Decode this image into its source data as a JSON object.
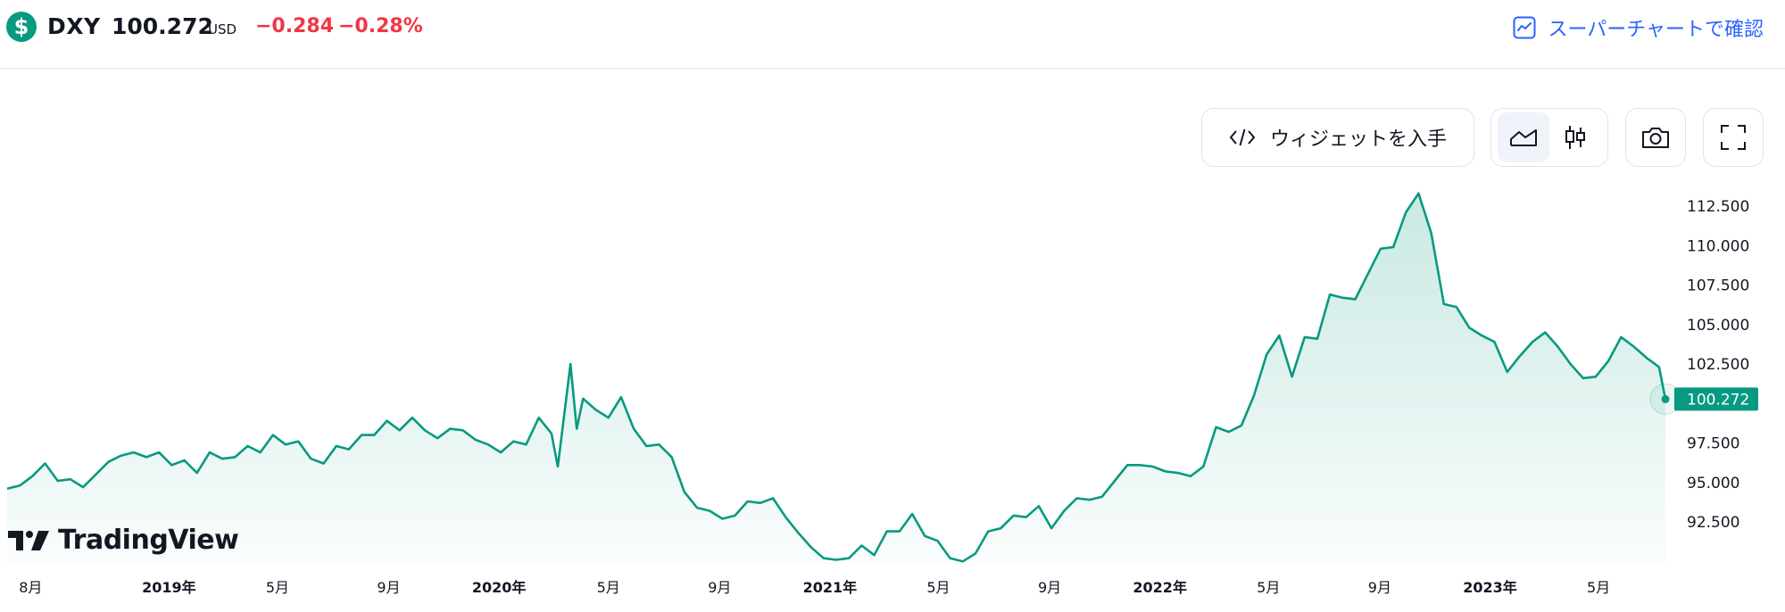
{
  "header": {
    "logo_glyph": "$",
    "symbol": "DXY",
    "price": "100.272",
    "currency": "USD",
    "change": "−0.284",
    "change_pct": "−0.28%",
    "supercharts_label": "スーパーチャートで確認"
  },
  "toolbar": {
    "widget_label": "ウィジェットを入手",
    "buttons": [
      "area-chart-icon",
      "candles-icon",
      "camera-icon",
      "fullscreen-icon"
    ],
    "active_chart_type": "area"
  },
  "brand": {
    "name": "TradingView"
  },
  "colors": {
    "line": "#089981",
    "negative": "#f23645",
    "accent": "#2962ff"
  },
  "chart_data": {
    "type": "area",
    "y_axis": {
      "ticks": [
        "112.500",
        "110.000",
        "107.500",
        "105.000",
        "102.500",
        "100.000",
        "97.500",
        "95.000",
        "92.500"
      ],
      "ylim": [
        90.0,
        115.0
      ]
    },
    "last_value_label": "100.272",
    "x_ticks": [
      {
        "label": "8月",
        "bold": false,
        "x": "2018-08-01"
      },
      {
        "label": "2019年",
        "bold": true,
        "x": "2019-01-01"
      },
      {
        "label": "5月",
        "bold": false,
        "x": "2019-05-01"
      },
      {
        "label": "9月",
        "bold": false,
        "x": "2019-09-01"
      },
      {
        "label": "2020年",
        "bold": true,
        "x": "2020-01-01"
      },
      {
        "label": "5月",
        "bold": false,
        "x": "2020-05-01"
      },
      {
        "label": "9月",
        "bold": false,
        "x": "2020-09-01"
      },
      {
        "label": "2021年",
        "bold": true,
        "x": "2021-01-01"
      },
      {
        "label": "5月",
        "bold": false,
        "x": "2021-05-01"
      },
      {
        "label": "9月",
        "bold": false,
        "x": "2021-09-01"
      },
      {
        "label": "2022年",
        "bold": true,
        "x": "2022-01-01"
      },
      {
        "label": "5月",
        "bold": false,
        "x": "2022-05-01"
      },
      {
        "label": "9月",
        "bold": false,
        "x": "2022-09-01"
      },
      {
        "label": "2023年",
        "bold": true,
        "x": "2023-01-01"
      },
      {
        "label": "5月",
        "bold": false,
        "x": "2023-05-01"
      }
    ],
    "series": [
      {
        "points": [
          [
            "2018-07-06",
            94.6
          ],
          [
            "2018-07-20",
            94.8
          ],
          [
            "2018-08-03",
            95.4
          ],
          [
            "2018-08-17",
            96.2
          ],
          [
            "2018-08-31",
            95.1
          ],
          [
            "2018-09-14",
            95.2
          ],
          [
            "2018-09-28",
            94.7
          ],
          [
            "2018-10-12",
            95.5
          ],
          [
            "2018-10-26",
            96.3
          ],
          [
            "2018-11-09",
            96.7
          ],
          [
            "2018-11-23",
            96.9
          ],
          [
            "2018-12-07",
            96.6
          ],
          [
            "2018-12-21",
            96.9
          ],
          [
            "2019-01-04",
            96.1
          ],
          [
            "2019-01-18",
            96.4
          ],
          [
            "2019-02-01",
            95.6
          ],
          [
            "2019-02-15",
            96.9
          ],
          [
            "2019-03-01",
            96.5
          ],
          [
            "2019-03-15",
            96.6
          ],
          [
            "2019-03-29",
            97.3
          ],
          [
            "2019-04-12",
            96.9
          ],
          [
            "2019-04-26",
            98.0
          ],
          [
            "2019-05-10",
            97.4
          ],
          [
            "2019-05-24",
            97.6
          ],
          [
            "2019-06-07",
            96.5
          ],
          [
            "2019-06-21",
            96.2
          ],
          [
            "2019-07-05",
            97.3
          ],
          [
            "2019-07-19",
            97.1
          ],
          [
            "2019-08-02",
            98.0
          ],
          [
            "2019-08-16",
            98.0
          ],
          [
            "2019-08-30",
            98.9
          ],
          [
            "2019-09-13",
            98.3
          ],
          [
            "2019-09-27",
            99.1
          ],
          [
            "2019-10-11",
            98.3
          ],
          [
            "2019-10-25",
            97.8
          ],
          [
            "2019-11-08",
            98.4
          ],
          [
            "2019-11-22",
            98.3
          ],
          [
            "2019-12-06",
            97.7
          ],
          [
            "2019-12-20",
            97.4
          ],
          [
            "2020-01-03",
            96.9
          ],
          [
            "2020-01-17",
            97.6
          ],
          [
            "2020-01-31",
            97.4
          ],
          [
            "2020-02-14",
            99.1
          ],
          [
            "2020-02-28",
            98.1
          ],
          [
            "2020-03-06",
            96.0
          ],
          [
            "2020-03-20",
            102.5
          ],
          [
            "2020-03-27",
            98.4
          ],
          [
            "2020-04-03",
            100.3
          ],
          [
            "2020-04-17",
            99.6
          ],
          [
            "2020-05-01",
            99.1
          ],
          [
            "2020-05-15",
            100.4
          ],
          [
            "2020-05-29",
            98.4
          ],
          [
            "2020-06-12",
            97.3
          ],
          [
            "2020-06-26",
            97.4
          ],
          [
            "2020-07-10",
            96.6
          ],
          [
            "2020-07-24",
            94.4
          ],
          [
            "2020-08-07",
            93.4
          ],
          [
            "2020-08-21",
            93.2
          ],
          [
            "2020-09-04",
            92.7
          ],
          [
            "2020-09-18",
            92.9
          ],
          [
            "2020-10-02",
            93.8
          ],
          [
            "2020-10-16",
            93.7
          ],
          [
            "2020-10-30",
            94.0
          ],
          [
            "2020-11-13",
            92.8
          ],
          [
            "2020-11-27",
            91.8
          ],
          [
            "2020-12-11",
            90.9
          ],
          [
            "2020-12-25",
            90.2
          ],
          [
            "2021-01-08",
            90.1
          ],
          [
            "2021-01-22",
            90.2
          ],
          [
            "2021-02-05",
            91.0
          ],
          [
            "2021-02-19",
            90.4
          ],
          [
            "2021-03-05",
            91.9
          ],
          [
            "2021-03-19",
            91.9
          ],
          [
            "2021-04-02",
            93.0
          ],
          [
            "2021-04-16",
            91.6
          ],
          [
            "2021-04-30",
            91.3
          ],
          [
            "2021-05-14",
            90.2
          ],
          [
            "2021-05-28",
            90.0
          ],
          [
            "2021-06-11",
            90.5
          ],
          [
            "2021-06-25",
            91.9
          ],
          [
            "2021-07-09",
            92.1
          ],
          [
            "2021-07-23",
            92.9
          ],
          [
            "2021-08-06",
            92.8
          ],
          [
            "2021-08-20",
            93.5
          ],
          [
            "2021-09-03",
            92.1
          ],
          [
            "2021-09-17",
            93.2
          ],
          [
            "2021-10-01",
            94.0
          ],
          [
            "2021-10-15",
            93.9
          ],
          [
            "2021-10-29",
            94.1
          ],
          [
            "2021-11-12",
            95.1
          ],
          [
            "2021-11-26",
            96.1
          ],
          [
            "2021-12-10",
            96.1
          ],
          [
            "2021-12-24",
            96.0
          ],
          [
            "2022-01-07",
            95.7
          ],
          [
            "2022-01-21",
            95.6
          ],
          [
            "2022-02-04",
            95.4
          ],
          [
            "2022-02-18",
            96.0
          ],
          [
            "2022-03-04",
            98.5
          ],
          [
            "2022-03-18",
            98.2
          ],
          [
            "2022-04-01",
            98.6
          ],
          [
            "2022-04-15",
            100.5
          ],
          [
            "2022-04-29",
            103.1
          ],
          [
            "2022-05-13",
            104.3
          ],
          [
            "2022-05-27",
            101.7
          ],
          [
            "2022-06-10",
            104.2
          ],
          [
            "2022-06-24",
            104.1
          ],
          [
            "2022-07-08",
            106.9
          ],
          [
            "2022-07-22",
            106.7
          ],
          [
            "2022-08-05",
            106.6
          ],
          [
            "2022-08-19",
            108.2
          ],
          [
            "2022-09-02",
            109.8
          ],
          [
            "2022-09-16",
            109.9
          ],
          [
            "2022-09-30",
            112.1
          ],
          [
            "2022-10-14",
            113.3
          ],
          [
            "2022-10-28",
            110.8
          ],
          [
            "2022-11-11",
            106.3
          ],
          [
            "2022-11-25",
            106.1
          ],
          [
            "2022-12-09",
            104.8
          ],
          [
            "2022-12-23",
            104.3
          ],
          [
            "2023-01-06",
            103.9
          ],
          [
            "2023-01-20",
            102.0
          ],
          [
            "2023-02-03",
            103.0
          ],
          [
            "2023-02-17",
            103.9
          ],
          [
            "2023-03-03",
            104.5
          ],
          [
            "2023-03-17",
            103.6
          ],
          [
            "2023-03-31",
            102.5
          ],
          [
            "2023-04-14",
            101.6
          ],
          [
            "2023-04-28",
            101.7
          ],
          [
            "2023-05-12",
            102.7
          ],
          [
            "2023-05-26",
            104.2
          ],
          [
            "2023-06-09",
            103.6
          ],
          [
            "2023-06-23",
            102.9
          ],
          [
            "2023-07-07",
            102.3
          ],
          [
            "2023-07-14",
            100.272
          ]
        ]
      }
    ]
  }
}
